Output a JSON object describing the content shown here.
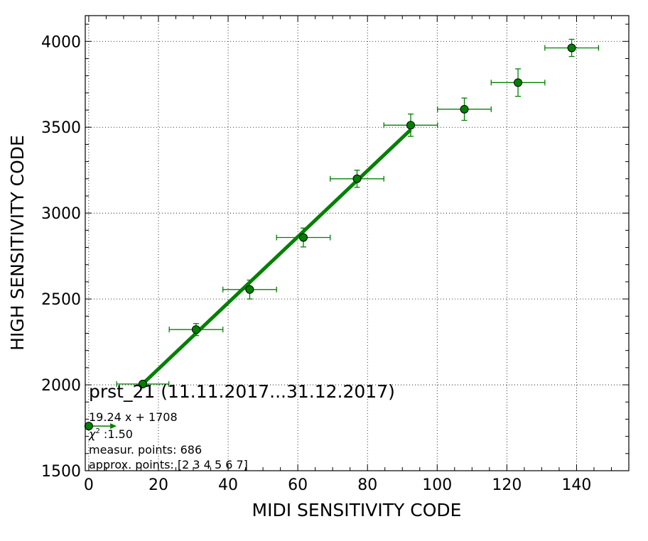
{
  "chart_data": {
    "type": "scatter",
    "xlabel": "MIDI SENSITIVITY CODE",
    "ylabel": "HIGH SENSITIVITY CODE",
    "xlim": [
      -1,
      155
    ],
    "ylim": [
      1500,
      4150
    ],
    "xticks": [
      0,
      20,
      40,
      60,
      80,
      100,
      120,
      140
    ],
    "yticks": [
      1500,
      2000,
      2500,
      3000,
      3500,
      4000
    ],
    "grid": true,
    "colors": {
      "series": "#008000",
      "marker_face": "#008000",
      "marker_edge": "#000000"
    },
    "points": [
      {
        "x": 0,
        "y": 1760,
        "xerr": 0,
        "yerr": 0
      },
      {
        "x": 15.5,
        "y": 2005,
        "xerr": 7.5,
        "yerr": 15
      },
      {
        "x": 30.8,
        "y": 2322,
        "xerr": 7.7,
        "yerr": 35
      },
      {
        "x": 46.2,
        "y": 2555,
        "xerr": 7.7,
        "yerr": 55
      },
      {
        "x": 61.6,
        "y": 2858,
        "xerr": 7.7,
        "yerr": 55
      },
      {
        "x": 77.0,
        "y": 3200,
        "xerr": 7.7,
        "yerr": 50
      },
      {
        "x": 92.4,
        "y": 3512,
        "xerr": 7.7,
        "yerr": 65
      },
      {
        "x": 107.8,
        "y": 3605,
        "xerr": 7.7,
        "yerr": 65
      },
      {
        "x": 123.2,
        "y": 3760,
        "xerr": 7.7,
        "yerr": 80
      },
      {
        "x": 138.6,
        "y": 3962,
        "xerr": 7.7,
        "yerr": 50
      }
    ],
    "fit_line": {
      "x_start": 15.5,
      "x_end": 92.4,
      "slope": 19.24,
      "intercept": 1708
    },
    "arrow": {
      "x_start": 0,
      "x_end": 8,
      "y": 1760
    },
    "annotations": {
      "title": "prst_21 (11.11.2017...31.12.2017)",
      "fit": "19.24 x + 1708",
      "chi2_symbol": "χ",
      "chi2_exp": "2",
      "chi2_value": " :1.50",
      "measur": "measur. points: 686",
      "approx": "approx. points: [2 3 4 5 6 7]"
    }
  }
}
